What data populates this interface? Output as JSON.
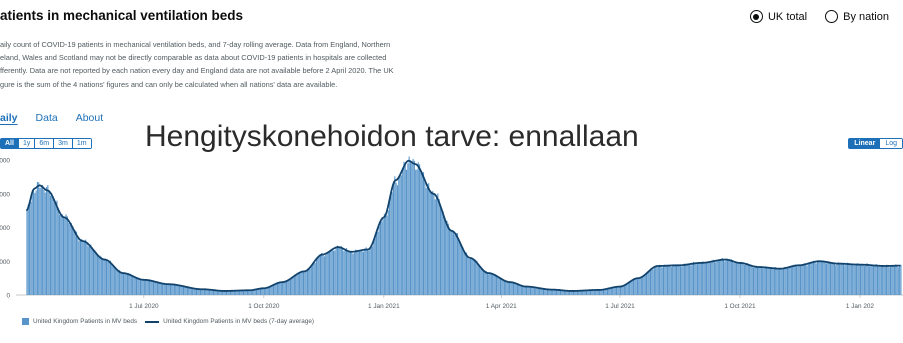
{
  "header": {
    "title": "atients in mechanical ventilation beds"
  },
  "view_toggle": {
    "options": [
      {
        "label": "UK total",
        "selected": true
      },
      {
        "label": "By nation",
        "selected": false
      }
    ]
  },
  "description": {
    "lines": [
      "aily count of COVID-19 patients in mechanical ventilation beds, and 7-day rolling average. Data from England, Northern",
      "eland, Wales and Scotland may not be directly comparable as data about COVID-19 patients in hospitals are collected",
      "fferently. Data are not reported by each nation every day and England data are not available before 2 April 2020. The UK",
      "gure is the sum of the 4 nations' figures and can only be calculated when all nations' data are available."
    ]
  },
  "tabs": [
    {
      "label": "aily",
      "active": true
    },
    {
      "label": "Data",
      "active": false
    },
    {
      "label": "About",
      "active": false
    }
  ],
  "range_buttons": [
    {
      "label": "All",
      "active": true
    },
    {
      "label": "1y",
      "active": false
    },
    {
      "label": "6m",
      "active": false
    },
    {
      "label": "3m",
      "active": false
    },
    {
      "label": "1m",
      "active": false
    }
  ],
  "scale_buttons": [
    {
      "label": "Linear",
      "active": true
    },
    {
      "label": "Log",
      "active": false
    }
  ],
  "overlay_text": "Hengityskonehoidon tarve: ennallaan",
  "legend": {
    "bars_label": "United Kingdom Patients in MV beds",
    "line_label": "United Kingdom Patients in MV beds (7-day average)"
  },
  "colors": {
    "bar": "#5694ca",
    "line": "#12436d",
    "link": "#1d70b8"
  },
  "chart_data": {
    "type": "bar",
    "series": [
      {
        "name": "United Kingdom Patients in MV beds",
        "type": "bar"
      },
      {
        "name": "United Kingdom Patients in MV beds (7-day average)",
        "type": "line"
      }
    ],
    "x_tick_labels": [
      "1 Jul 2020",
      "1 Oct 2020",
      "1 Jan 2021",
      "1 Apr 2021",
      "1 Jul 2021",
      "1 Oct 2021",
      "1 Jan 202"
    ],
    "y_tick_labels": [
      "0",
      "000",
      "000",
      "000",
      "000"
    ],
    "ylim": [
      0,
      4000
    ],
    "points": [
      [
        "2020-04-02",
        2500
      ],
      [
        "2020-04-08",
        3150
      ],
      [
        "2020-04-12",
        3250
      ],
      [
        "2020-04-18",
        3100
      ],
      [
        "2020-05-01",
        2300
      ],
      [
        "2020-05-15",
        1600
      ],
      [
        "2020-06-01",
        1050
      ],
      [
        "2020-06-15",
        650
      ],
      [
        "2020-07-01",
        450
      ],
      [
        "2020-07-20",
        320
      ],
      [
        "2020-08-15",
        170
      ],
      [
        "2020-09-01",
        120
      ],
      [
        "2020-09-20",
        140
      ],
      [
        "2020-10-01",
        200
      ],
      [
        "2020-10-15",
        380
      ],
      [
        "2020-11-01",
        700
      ],
      [
        "2020-11-15",
        1200
      ],
      [
        "2020-11-27",
        1420
      ],
      [
        "2020-12-07",
        1280
      ],
      [
        "2020-12-20",
        1350
      ],
      [
        "2021-01-01",
        2300
      ],
      [
        "2021-01-10",
        3400
      ],
      [
        "2021-01-20",
        3980
      ],
      [
        "2021-01-25",
        3880
      ],
      [
        "2021-02-08",
        3000
      ],
      [
        "2021-02-22",
        1900
      ],
      [
        "2021-03-08",
        1100
      ],
      [
        "2021-03-22",
        650
      ],
      [
        "2021-04-08",
        380
      ],
      [
        "2021-04-20",
        250
      ],
      [
        "2021-05-10",
        160
      ],
      [
        "2021-05-25",
        120
      ],
      [
        "2021-06-15",
        150
      ],
      [
        "2021-07-01",
        250
      ],
      [
        "2021-07-15",
        500
      ],
      [
        "2021-07-30",
        860
      ],
      [
        "2021-08-15",
        880
      ],
      [
        "2021-09-01",
        950
      ],
      [
        "2021-09-20",
        1050
      ],
      [
        "2021-10-01",
        950
      ],
      [
        "2021-10-15",
        830
      ],
      [
        "2021-11-01",
        780
      ],
      [
        "2021-11-15",
        880
      ],
      [
        "2021-12-01",
        1000
      ],
      [
        "2021-12-15",
        930
      ],
      [
        "2022-01-01",
        900
      ],
      [
        "2022-01-20",
        860
      ],
      [
        "2022-02-01",
        870
      ]
    ],
    "grid": false
  }
}
